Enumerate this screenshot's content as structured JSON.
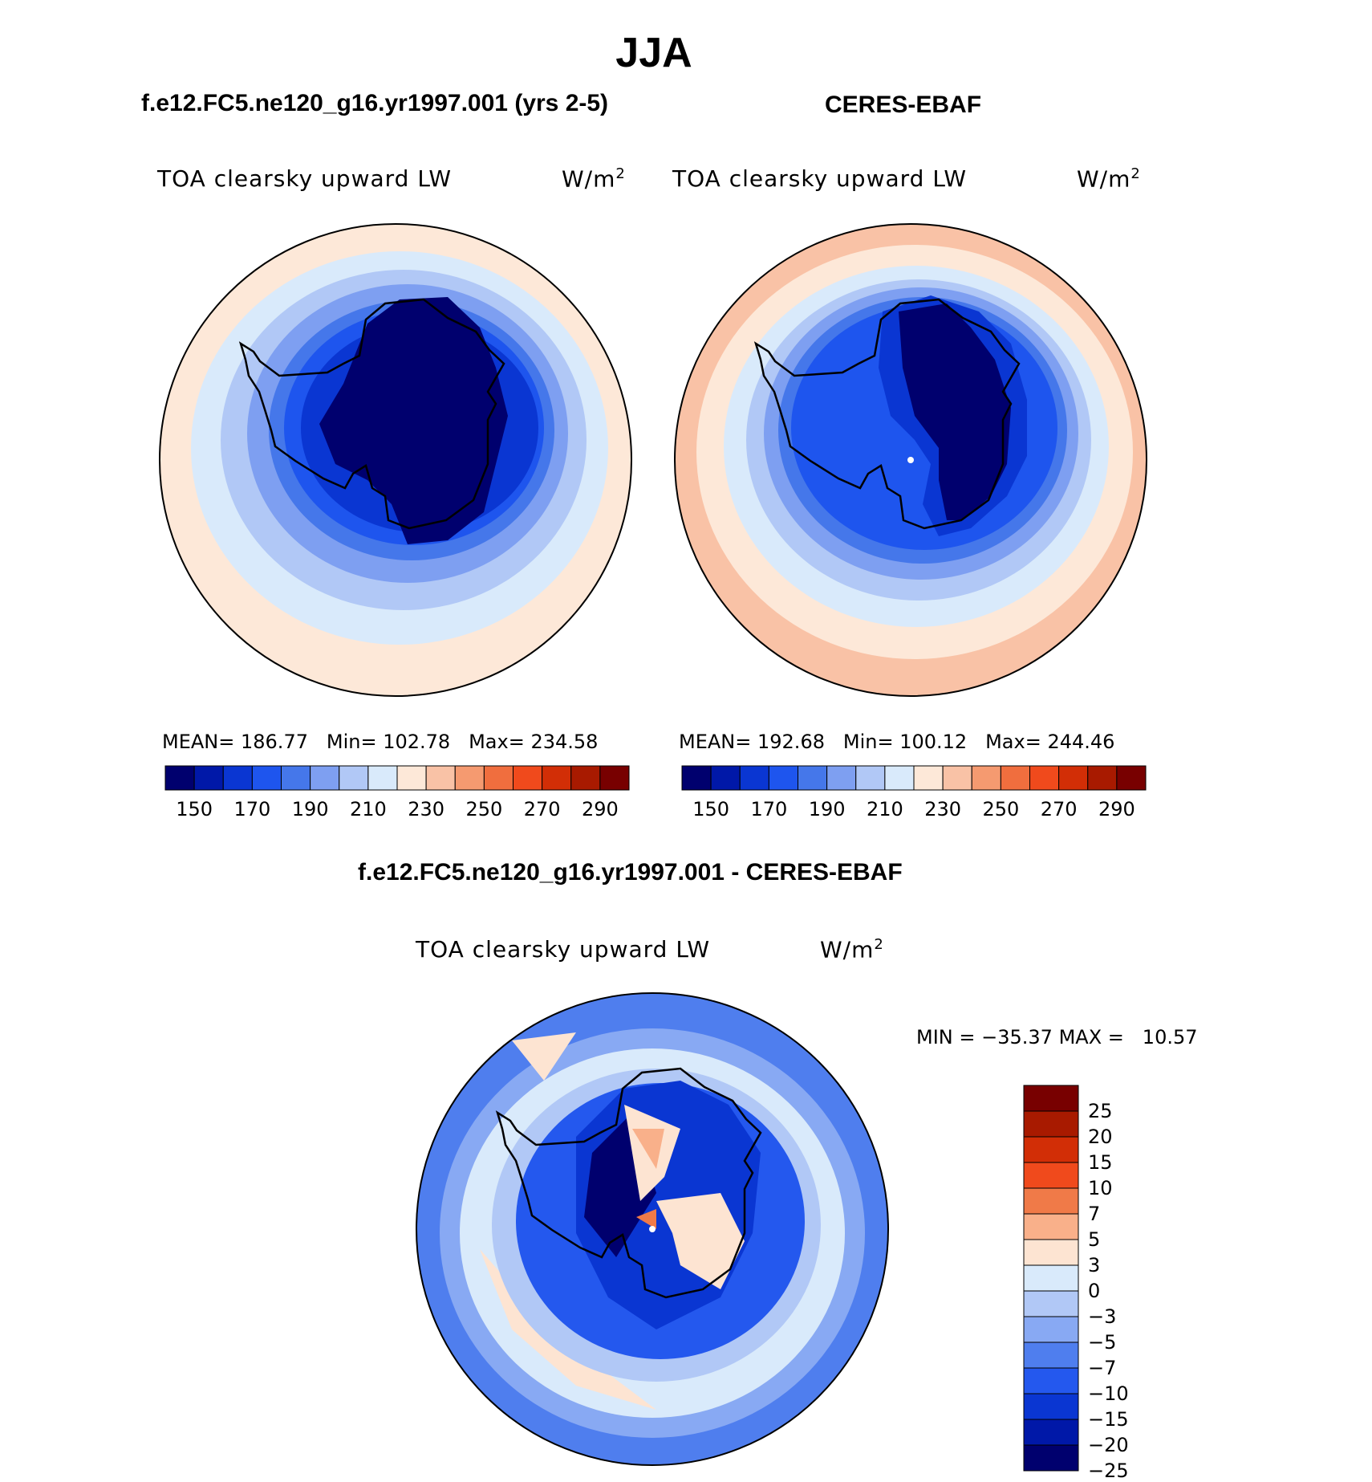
{
  "figure": {
    "season": "JJA",
    "model_title": "f.e12.FC5.ne120_g16.yr1997.001 (yrs 2-5)",
    "obs_title": "CERES-EBAF",
    "diff_title": "f.e12.FC5.ne120_g16.yr1997.001 - CERES-EBAF"
  },
  "panels": [
    {
      "id": "model",
      "variable": "TOA clearsky upward LW",
      "units_base": "W/m",
      "units_exp": "2",
      "stats": {
        "mean_label": "MEAN=",
        "mean": "186.77",
        "min_label": "Min=",
        "min": "102.78",
        "max_label": "Max=",
        "max": "234.58"
      }
    },
    {
      "id": "obs",
      "variable": "TOA clearsky upward LW",
      "units_base": "W/m",
      "units_exp": "2",
      "stats": {
        "mean_label": "MEAN=",
        "mean": "192.68",
        "min_label": "Min=",
        "min": "100.12",
        "max_label": "Max=",
        "max": "244.46"
      }
    },
    {
      "id": "diff",
      "variable": "TOA clearsky upward LW",
      "units_base": "W/m",
      "units_exp": "2",
      "stats": {
        "min_label": "MIN =",
        "min": "−35.37",
        "max_label": "MAX =",
        "max": "10.57"
      }
    }
  ],
  "colorbars": {
    "absolute": {
      "colors": [
        "#00006e",
        "#0018a8",
        "#0a36d2",
        "#1e55ee",
        "#4577ea",
        "#7e9ff1",
        "#b1c8f6",
        "#d9eafb",
        "#fde8d8",
        "#f9c2a6",
        "#f59a70",
        "#f06e3e",
        "#f04a1c",
        "#d22e06",
        "#a81a00",
        "#780000"
      ],
      "ticks": [
        "150",
        "170",
        "190",
        "210",
        "230",
        "250",
        "270",
        "290"
      ]
    },
    "difference": {
      "colors": [
        "#780000",
        "#a81a00",
        "#d22e06",
        "#f04a1c",
        "#f07a48",
        "#f9b08a",
        "#fde4d2",
        "#d9eafb",
        "#b1c8f6",
        "#88a9f3",
        "#4f7eee",
        "#2458ee",
        "#0a36d2",
        "#0018a8",
        "#00006e"
      ],
      "ticks": [
        "25",
        "20",
        "15",
        "10",
        "7",
        "5",
        "3",
        "0",
        "−3",
        "−5",
        "−7",
        "−10",
        "−15",
        "−20",
        "−25"
      ]
    }
  },
  "map_legend": {
    "projection": "south-polar stereographic",
    "coastline": "Antarctica"
  }
}
